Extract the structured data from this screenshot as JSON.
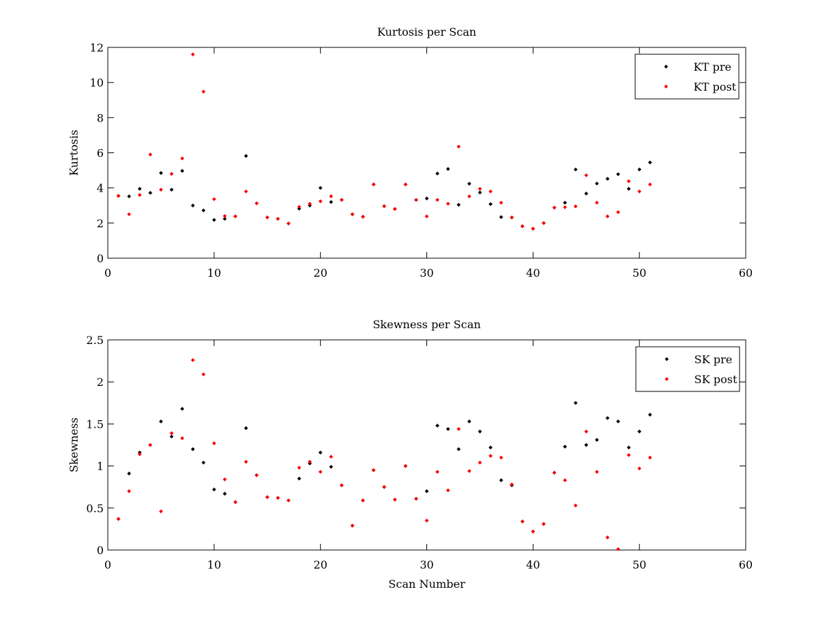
{
  "chart_data": [
    {
      "type": "scatter",
      "title": "Kurtosis per Scan",
      "xlabel": "",
      "ylabel": "Kurtosis",
      "xlim": [
        0,
        60
      ],
      "ylim": [
        0,
        12
      ],
      "xticks": [
        0,
        10,
        20,
        30,
        40,
        50,
        60
      ],
      "yticks": [
        0,
        2,
        4,
        6,
        8,
        10,
        12
      ],
      "grid": false,
      "legend_position": "top-right",
      "series": [
        {
          "name": "KT pre",
          "color": "#000000",
          "x": [
            1,
            2,
            3,
            4,
            5,
            6,
            7,
            8,
            9,
            10,
            11,
            12,
            13,
            14,
            15,
            16,
            17,
            18,
            19,
            20,
            21,
            22,
            23,
            24,
            25,
            26,
            27,
            28,
            29,
            30,
            31,
            32,
            33,
            34,
            35,
            36,
            37,
            38,
            39,
            40,
            41,
            42,
            43,
            44,
            45,
            46,
            47,
            48,
            49,
            50,
            51
          ],
          "y": [
            3.55,
            3.52,
            3.95,
            3.72,
            4.85,
            3.9,
            4.97,
            3.0,
            2.72,
            2.18,
            2.24,
            2.38,
            5.82,
            3.12,
            2.32,
            2.24,
            1.98,
            2.82,
            3.0,
            4.0,
            3.2,
            3.32,
            2.5,
            2.36,
            4.2,
            2.96,
            2.8,
            4.2,
            3.32,
            3.4,
            4.82,
            5.08,
            3.04,
            4.24,
            3.74,
            3.08,
            2.34,
            2.32,
            1.82,
            1.68,
            2.0,
            2.88,
            3.16,
            5.05,
            3.68,
            4.25,
            4.52,
            4.78,
            3.95,
            5.05,
            5.45
          ]
        },
        {
          "name": "KT post",
          "color": "#ff0000",
          "x": [
            1,
            2,
            3,
            4,
            5,
            6,
            7,
            8,
            9,
            10,
            11,
            12,
            13,
            14,
            15,
            16,
            17,
            18,
            19,
            20,
            21,
            22,
            23,
            24,
            25,
            26,
            27,
            28,
            29,
            30,
            31,
            32,
            33,
            34,
            35,
            36,
            37,
            38,
            39,
            40,
            41,
            42,
            43,
            44,
            45,
            46,
            47,
            48,
            49,
            50,
            51
          ],
          "y": [
            3.55,
            2.5,
            3.6,
            5.9,
            3.9,
            4.8,
            5.68,
            11.6,
            9.48,
            3.36,
            2.4,
            2.38,
            3.8,
            3.12,
            2.32,
            2.24,
            1.98,
            2.92,
            3.1,
            3.24,
            3.52,
            3.32,
            2.5,
            2.36,
            4.2,
            2.96,
            2.8,
            4.2,
            3.32,
            2.38,
            3.32,
            3.1,
            6.35,
            3.52,
            3.95,
            3.8,
            3.16,
            2.32,
            1.82,
            1.68,
            2.0,
            2.88,
            2.9,
            2.95,
            4.72,
            3.16,
            2.38,
            2.62,
            4.38,
            3.8,
            4.2
          ]
        }
      ]
    },
    {
      "type": "scatter",
      "title": "Skewness per Scan",
      "xlabel": "Scan Number",
      "ylabel": "Skewness",
      "xlim": [
        0,
        60
      ],
      "ylim": [
        0,
        2.5
      ],
      "xticks": [
        0,
        10,
        20,
        30,
        40,
        50,
        60
      ],
      "yticks": [
        0,
        0.5,
        1,
        1.5,
        2,
        2.5
      ],
      "grid": false,
      "legend_position": "top-right",
      "series": [
        {
          "name": "SK pre",
          "color": "#000000",
          "x": [
            1,
            2,
            3,
            4,
            5,
            6,
            7,
            8,
            9,
            10,
            11,
            12,
            13,
            14,
            15,
            16,
            17,
            18,
            19,
            20,
            21,
            22,
            23,
            24,
            25,
            26,
            27,
            28,
            29,
            30,
            31,
            32,
            33,
            34,
            35,
            36,
            37,
            38,
            39,
            40,
            41,
            42,
            43,
            44,
            45,
            46,
            47,
            48,
            49,
            50,
            51
          ],
          "y": [
            0.37,
            0.91,
            1.16,
            1.25,
            1.53,
            1.35,
            1.68,
            1.2,
            1.04,
            0.72,
            0.67,
            0.57,
            1.45,
            0.89,
            0.63,
            0.62,
            0.59,
            0.85,
            1.03,
            1.16,
            0.99,
            0.77,
            0.29,
            0.59,
            0.95,
            0.75,
            0.6,
            1.0,
            0.61,
            0.7,
            1.48,
            1.44,
            1.2,
            1.53,
            1.41,
            1.22,
            0.83,
            0.77,
            0.34,
            0.22,
            0.31,
            0.92,
            1.23,
            1.75,
            1.25,
            1.31,
            1.57,
            1.53,
            1.22,
            1.41,
            1.61
          ]
        },
        {
          "name": "SK post",
          "color": "#ff0000",
          "x": [
            1,
            2,
            3,
            4,
            5,
            6,
            7,
            8,
            9,
            10,
            11,
            12,
            13,
            14,
            15,
            16,
            17,
            18,
            19,
            20,
            21,
            22,
            23,
            24,
            25,
            26,
            27,
            28,
            29,
            30,
            31,
            32,
            33,
            34,
            35,
            36,
            37,
            38,
            39,
            40,
            41,
            42,
            43,
            44,
            45,
            46,
            47,
            48,
            49,
            50,
            51
          ],
          "y": [
            0.37,
            0.7,
            1.14,
            1.25,
            0.46,
            1.39,
            1.33,
            2.26,
            2.09,
            1.27,
            0.84,
            0.57,
            1.05,
            0.89,
            0.63,
            0.62,
            0.59,
            0.98,
            1.05,
            0.93,
            1.11,
            0.77,
            0.29,
            0.59,
            0.95,
            0.75,
            0.6,
            1.0,
            0.61,
            0.35,
            0.93,
            0.71,
            1.44,
            0.94,
            1.04,
            1.12,
            1.1,
            0.78,
            0.34,
            0.22,
            0.31,
            0.92,
            0.83,
            0.53,
            1.41,
            0.93,
            0.15,
            0.01,
            1.13,
            0.97,
            1.1
          ]
        }
      ]
    }
  ]
}
